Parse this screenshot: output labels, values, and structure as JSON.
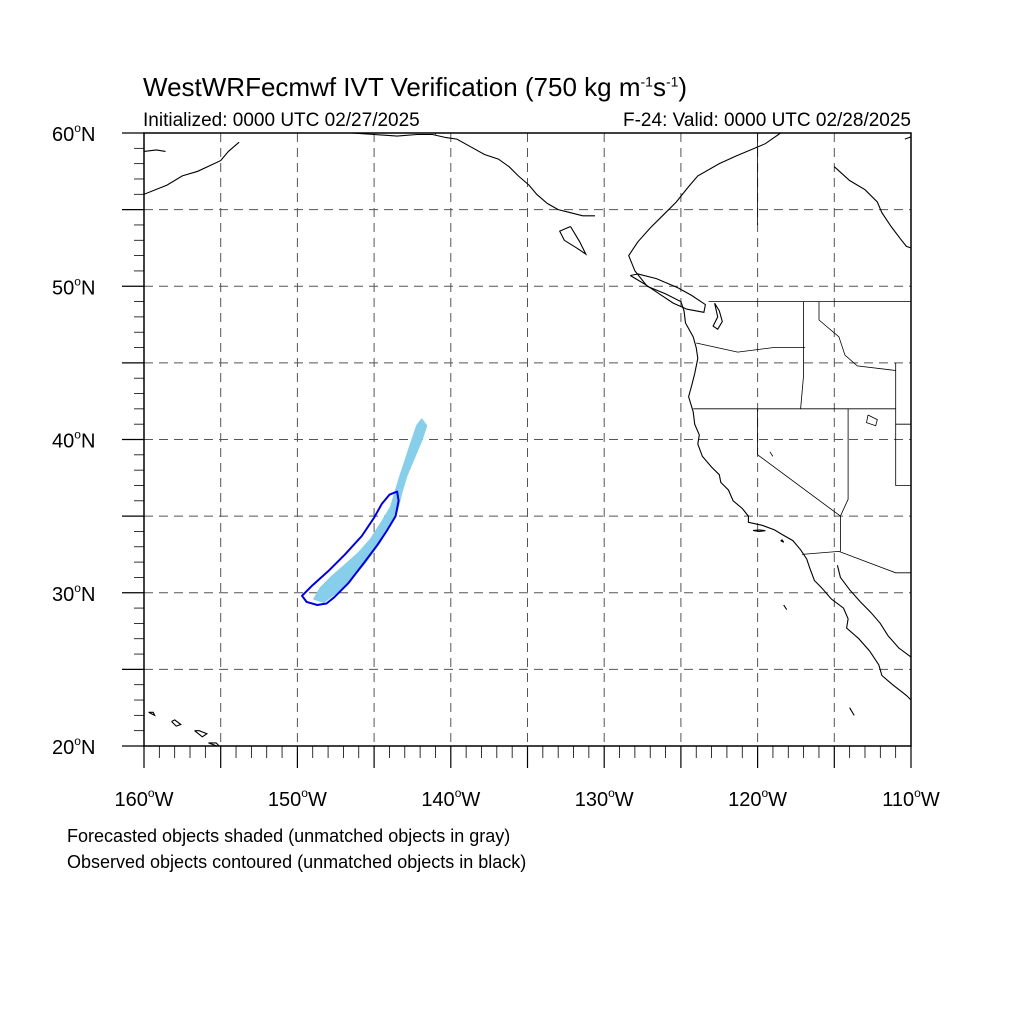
{
  "title": {
    "main": "WestWRFecmwf IVT Verification (750 kg m",
    "exp1": "-1",
    "mid": "s",
    "exp2": "-1",
    "end": ")"
  },
  "init_text": "Initialized: 0000 UTC 02/27/2025",
  "valid_text": "F-24: Valid: 0000 UTC 02/28/2025",
  "notes": {
    "line1": "Forecasted objects shaded (unmatched objects in gray)",
    "line2": "Observed objects contoured (unmatched objects in black)"
  },
  "map": {
    "lon_range": [
      -160,
      -110
    ],
    "lat_range": [
      20,
      60
    ],
    "lat_labels": [
      {
        "lat": 60,
        "text": "60",
        "suffix": "N"
      },
      {
        "lat": 50,
        "text": "50",
        "suffix": "N"
      },
      {
        "lat": 40,
        "text": "40",
        "suffix": "N"
      },
      {
        "lat": 30,
        "text": "30",
        "suffix": "N"
      },
      {
        "lat": 20,
        "text": "20",
        "suffix": "N"
      }
    ],
    "lon_labels": [
      {
        "lon": -160,
        "text": "160",
        "suffix": "W"
      },
      {
        "lon": -150,
        "text": "150",
        "suffix": "W"
      },
      {
        "lon": -140,
        "text": "140",
        "suffix": "W"
      },
      {
        "lon": -130,
        "text": "130",
        "suffix": "W"
      },
      {
        "lon": -120,
        "text": "120",
        "suffix": "W"
      },
      {
        "lon": -110,
        "text": "110",
        "suffix": "W"
      }
    ],
    "grid_lons": [
      -155,
      -150,
      -145,
      -140,
      -135,
      -130,
      -125,
      -120,
      -115
    ],
    "grid_lats": [
      25,
      30,
      35,
      40,
      45,
      50,
      55
    ],
    "colors": {
      "forecast_fill": "#87ceeb",
      "observed_contour": "#0000dd",
      "coast": "#000000",
      "grid": "#555555"
    },
    "forecast_object": [
      [
        -148.9,
        29.6
      ],
      [
        -148.5,
        30.3
      ],
      [
        -147.8,
        31.0
      ],
      [
        -146.9,
        31.8
      ],
      [
        -146.0,
        32.6
      ],
      [
        -145.2,
        33.5
      ],
      [
        -144.5,
        34.6
      ],
      [
        -143.9,
        35.6
      ],
      [
        -143.6,
        36.6
      ],
      [
        -143.3,
        37.6
      ],
      [
        -142.9,
        38.8
      ],
      [
        -142.5,
        40.0
      ],
      [
        -142.2,
        40.9
      ],
      [
        -141.9,
        41.3
      ],
      [
        -141.6,
        40.9
      ],
      [
        -141.9,
        40.0
      ],
      [
        -142.4,
        38.8
      ],
      [
        -142.9,
        37.6
      ],
      [
        -143.2,
        36.6
      ],
      [
        -143.5,
        35.4
      ],
      [
        -144.0,
        34.4
      ],
      [
        -144.7,
        33.2
      ],
      [
        -145.5,
        32.1
      ],
      [
        -146.5,
        30.9
      ],
      [
        -147.5,
        30.0
      ],
      [
        -148.3,
        29.4
      ]
    ],
    "observed_object": [
      [
        -149.7,
        29.8
      ],
      [
        -149.0,
        30.5
      ],
      [
        -148.0,
        31.4
      ],
      [
        -146.9,
        32.5
      ],
      [
        -145.8,
        33.7
      ],
      [
        -145.0,
        34.9
      ],
      [
        -144.5,
        35.8
      ],
      [
        -144.0,
        36.4
      ],
      [
        -143.5,
        36.6
      ],
      [
        -143.4,
        36.0
      ],
      [
        -143.6,
        35.0
      ],
      [
        -144.2,
        34.0
      ],
      [
        -144.8,
        33.1
      ],
      [
        -145.7,
        31.9
      ],
      [
        -146.7,
        30.6
      ],
      [
        -147.6,
        29.7
      ],
      [
        -148.1,
        29.3
      ],
      [
        -148.7,
        29.2
      ],
      [
        -149.4,
        29.4
      ],
      [
        -149.7,
        29.8
      ]
    ],
    "coastlines": [
      [
        [
          -118.5,
          60
        ],
        [
          -119.5,
          59.3
        ],
        [
          -121.4,
          58.5
        ],
        [
          -122.5,
          58.0
        ],
        [
          -123.9,
          57.2
        ],
        [
          -124.5,
          56.5
        ],
        [
          -125.3,
          55.5
        ],
        [
          -126.0,
          54.8
        ],
        [
          -127.0,
          53.8
        ],
        [
          -127.8,
          52.9
        ],
        [
          -128.4,
          52.0
        ],
        [
          -128.0,
          51.0
        ],
        [
          -127.2,
          50.0
        ],
        [
          -126.0,
          49.5
        ],
        [
          -125.0,
          49.0
        ],
        [
          -124.8,
          48.4
        ],
        [
          -124.7,
          47.6
        ],
        [
          -124.2,
          46.7
        ],
        [
          -124.0,
          46.0
        ],
        [
          -123.9,
          45.3
        ],
        [
          -124.1,
          44.3
        ],
        [
          -124.3,
          43.5
        ],
        [
          -124.5,
          42.8
        ],
        [
          -124.2,
          41.8
        ],
        [
          -124.1,
          41.0
        ],
        [
          -123.8,
          40.3
        ],
        [
          -123.9,
          39.7
        ],
        [
          -123.6,
          38.9
        ],
        [
          -123.0,
          38.2
        ],
        [
          -122.5,
          37.7
        ],
        [
          -122.4,
          37.2
        ],
        [
          -121.9,
          36.7
        ],
        [
          -121.6,
          36.0
        ],
        [
          -121.0,
          35.5
        ],
        [
          -120.6,
          35.0
        ],
        [
          -120.6,
          34.6
        ],
        [
          -119.7,
          34.4
        ],
        [
          -118.9,
          34.1
        ],
        [
          -118.4,
          33.8
        ],
        [
          -117.7,
          33.4
        ],
        [
          -117.2,
          32.8
        ],
        [
          -116.8,
          32.2
        ],
        [
          -116.6,
          31.6
        ],
        [
          -116.3,
          30.8
        ],
        [
          -115.8,
          30.3
        ],
        [
          -115.2,
          29.6
        ],
        [
          -114.4,
          29.0
        ],
        [
          -114.1,
          28.3
        ],
        [
          -114.2,
          27.7
        ],
        [
          -113.4,
          27.0
        ],
        [
          -112.7,
          26.2
        ],
        [
          -112.1,
          25.3
        ],
        [
          -111.9,
          24.6
        ],
        [
          -111.2,
          24.0
        ],
        [
          -110.3,
          23.3
        ],
        [
          -110.0,
          23.0
        ]
      ],
      [
        [
          -114.8,
          31.8
        ],
        [
          -114.6,
          31.0
        ],
        [
          -114.0,
          30.2
        ],
        [
          -113.3,
          29.4
        ],
        [
          -112.6,
          28.7
        ],
        [
          -112.0,
          28.0
        ],
        [
          -111.5,
          27.2
        ],
        [
          -110.8,
          26.4
        ],
        [
          -110.0,
          25.8
        ]
      ],
      [
        [
          -160,
          56.0
        ],
        [
          -158.5,
          56.6
        ],
        [
          -157.5,
          57.2
        ],
        [
          -156.5,
          57.5
        ],
        [
          -155.0,
          58.2
        ],
        [
          -154.5,
          58.8
        ],
        [
          -153.8,
          59.4
        ]
      ],
      [
        [
          -160,
          58.8
        ],
        [
          -159.2,
          58.9
        ],
        [
          -158.6,
          58.8
        ]
      ],
      [
        [
          -146.5,
          60
        ],
        [
          -145.0,
          59.9
        ],
        [
          -143.5,
          59.8
        ],
        [
          -142.2,
          59.9
        ],
        [
          -141.2,
          59.9
        ],
        [
          -140.3,
          59.7
        ],
        [
          -139.6,
          59.6
        ],
        [
          -138.7,
          59.1
        ],
        [
          -137.8,
          58.6
        ],
        [
          -136.9,
          58.3
        ],
        [
          -136.2,
          57.8
        ],
        [
          -135.6,
          57.2
        ],
        [
          -134.9,
          56.6
        ],
        [
          -134.4,
          56.0
        ],
        [
          -133.7,
          55.4
        ],
        [
          -133.0,
          55.0
        ],
        [
          -132.2,
          54.8
        ],
        [
          -131.4,
          54.6
        ],
        [
          -130.6,
          54.6
        ]
      ],
      [
        [
          -110.4,
          59.6
        ],
        [
          -109.6,
          59.9
        ],
        [
          -109.4,
          60
        ]
      ],
      [
        [
          -132.2,
          53.9
        ],
        [
          -132.9,
          53.6
        ],
        [
          -132.6,
          53.0
        ],
        [
          -131.8,
          52.5
        ],
        [
          -131.2,
          52.1
        ],
        [
          -131.6,
          52.9
        ],
        [
          -132.2,
          53.9
        ]
      ],
      [
        [
          -128.3,
          50.7
        ],
        [
          -127.3,
          50.1
        ],
        [
          -126.4,
          49.5
        ],
        [
          -125.5,
          48.9
        ],
        [
          -124.6,
          48.5
        ],
        [
          -123.5,
          48.3
        ],
        [
          -123.4,
          48.8
        ],
        [
          -124.3,
          49.4
        ],
        [
          -125.2,
          49.9
        ],
        [
          -126.6,
          50.5
        ],
        [
          -127.8,
          50.8
        ],
        [
          -128.3,
          50.7
        ]
      ],
      [
        [
          -122.8,
          48.9
        ],
        [
          -122.5,
          48.4
        ],
        [
          -122.3,
          47.7
        ],
        [
          -122.6,
          47.2
        ],
        [
          -122.9,
          47.4
        ],
        [
          -122.6,
          48.0
        ],
        [
          -122.8,
          48.9
        ]
      ],
      [
        [
          -115.0,
          57.8
        ],
        [
          -114.0,
          56.9
        ],
        [
          -113.0,
          56.3
        ],
        [
          -112.2,
          55.5
        ],
        [
          -111.9,
          54.8
        ],
        [
          -111.3,
          53.9
        ],
        [
          -110.7,
          53.1
        ],
        [
          -110.3,
          52.6
        ],
        [
          -110.0,
          52.5
        ]
      ],
      [
        [
          -120.3,
          34.06
        ],
        [
          -119.9,
          34.0
        ],
        [
          -119.5,
          34.05
        ],
        [
          -119.9,
          34.1
        ],
        [
          -120.3,
          34.06
        ]
      ],
      [
        [
          -118.5,
          33.4
        ],
        [
          -118.3,
          33.3
        ],
        [
          -118.4,
          33.45
        ],
        [
          -118.5,
          33.4
        ]
      ],
      [
        [
          -158.2,
          21.6
        ],
        [
          -157.9,
          21.3
        ],
        [
          -157.6,
          21.4
        ],
        [
          -158.0,
          21.7
        ],
        [
          -158.2,
          21.6
        ]
      ],
      [
        [
          -159.7,
          22.2
        ],
        [
          -159.3,
          22.0
        ],
        [
          -159.4,
          22.2
        ],
        [
          -159.7,
          22.2
        ]
      ],
      [
        [
          -156.7,
          21.0
        ],
        [
          -156.2,
          20.6
        ],
        [
          -155.9,
          20.8
        ],
        [
          -156.4,
          21.0
        ],
        [
          -156.7,
          21.0
        ]
      ],
      [
        [
          -155.8,
          20.2
        ],
        [
          -155.0,
          19.9
        ],
        [
          -155.3,
          20.2
        ],
        [
          -155.8,
          20.2
        ]
      ],
      [
        [
          -114.0,
          22.5
        ],
        [
          -113.7,
          22.0
        ],
        [
          -114.0,
          22.5
        ]
      ],
      [
        [
          -118.3,
          29.2
        ],
        [
          -118.1,
          28.9
        ],
        [
          -118.3,
          29.2
        ]
      ]
    ],
    "borders": [
      [
        [
          -123.2,
          49.0
        ],
        [
          -95.0,
          49.0
        ]
      ],
      [
        [
          -141.0,
          60.0
        ],
        [
          -141.0,
          59.9
        ]
      ],
      [
        [
          -120.0,
          60.0
        ],
        [
          -120.0,
          54.0
        ]
      ],
      [
        [
          -124.2,
          42.0
        ],
        [
          -111.0,
          42.0
        ]
      ],
      [
        [
          -120.0,
          42.0
        ],
        [
          -120.0,
          39.0
        ],
        [
          -114.6,
          35.0
        ]
      ],
      [
        [
          -124.0,
          46.3
        ],
        [
          -121.3,
          45.7
        ],
        [
          -119.0,
          46.0
        ],
        [
          -116.9,
          46.0
        ]
      ],
      [
        [
          -117.0,
          49.0
        ],
        [
          -117.0,
          44.2
        ],
        [
          -117.2,
          42.0
        ]
      ],
      [
        [
          -116.0,
          49.0
        ],
        [
          -116.0,
          47.8
        ],
        [
          -114.7,
          46.7
        ],
        [
          -114.3,
          45.5
        ],
        [
          -113.5,
          44.8
        ],
        [
          -111.0,
          44.5
        ]
      ],
      [
        [
          -114.1,
          42.0
        ],
        [
          -114.1,
          36.1
        ],
        [
          -114.6,
          35.0
        ],
        [
          -114.6,
          32.7
        ]
      ],
      [
        [
          -117.1,
          32.5
        ],
        [
          -114.7,
          32.7
        ],
        [
          -111.0,
          31.3
        ],
        [
          -108.2,
          31.3
        ]
      ],
      [
        [
          -111.0,
          45.0
        ],
        [
          -111.0,
          41.0
        ],
        [
          -109.0,
          41.0
        ]
      ],
      [
        [
          -111.0,
          41.0
        ],
        [
          -111.0,
          37.0
        ],
        [
          -109.0,
          37.0
        ]
      ]
    ],
    "lakes": [
      [
        [
          -112.8,
          41.6
        ],
        [
          -112.2,
          41.3
        ],
        [
          -112.3,
          40.9
        ],
        [
          -112.9,
          41.1
        ],
        [
          -112.8,
          41.6
        ]
      ],
      [
        [
          -119.2,
          39.2
        ],
        [
          -119.0,
          38.9
        ],
        [
          -119.2,
          39.2
        ]
      ]
    ]
  }
}
